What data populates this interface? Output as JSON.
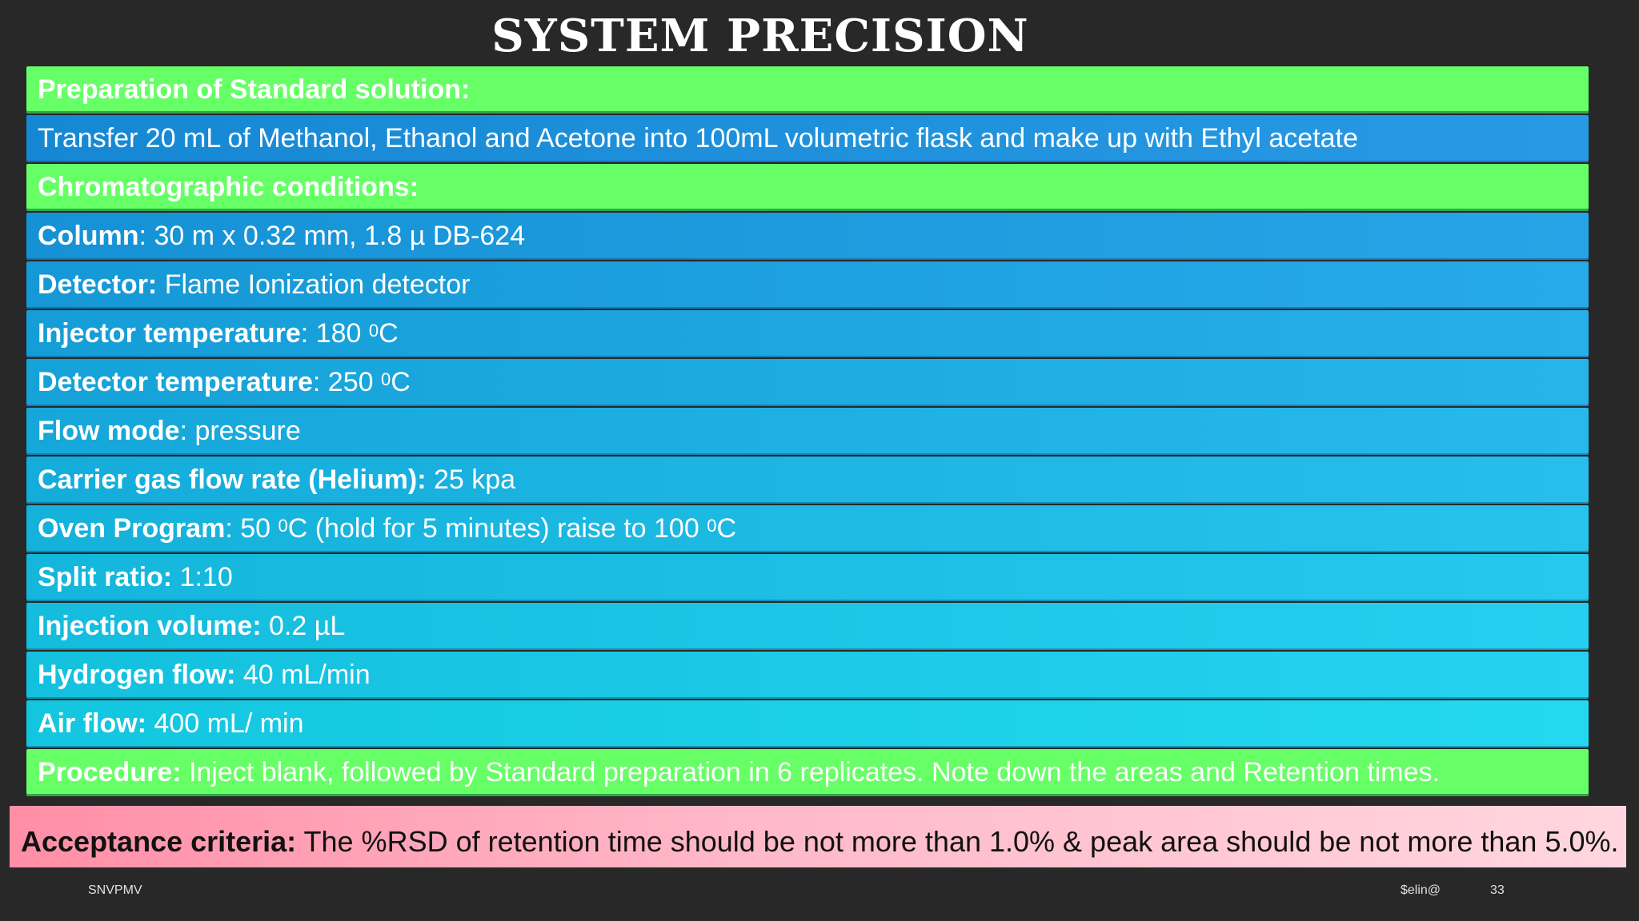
{
  "title": "SYSTEM  PRECISION",
  "rows": [
    {
      "label": "Preparation of Standard solution:",
      "text": "",
      "kind": "green"
    },
    {
      "label": "",
      "text": "Transfer 20 mL of Methanol, Ethanol and Acetone into 100mL volumetric flask and make up with Ethyl acetate",
      "kind": "blue"
    },
    {
      "label": "Chromatographic conditions:",
      "text": "",
      "kind": "green"
    },
    {
      "label": "Column",
      "text": ": 30 m x 0.32 mm, 1.8 µ DB-624",
      "kind": "blue"
    },
    {
      "label": "Detector:",
      "text": " Flame Ionization detector",
      "kind": "blue"
    },
    {
      "label": "Injector temperature",
      "text": ": 180 ",
      "sup": "0",
      "tail": "C",
      "kind": "blue"
    },
    {
      "label": "Detector temperature",
      "text": ": 250 ",
      "sup": "0",
      "tail": "C",
      "kind": "blue"
    },
    {
      "label": "Flow mode",
      "text": ": pressure",
      "kind": "blue"
    },
    {
      "label": "Carrier gas flow rate (Helium):",
      "text": " 25 kpa",
      "kind": "blue"
    },
    {
      "label": "Oven Program",
      "text": ": 50 ",
      "sup": "0",
      "tail": "C (hold for 5 minutes) raise to 100 ",
      "sup2": "0",
      "tail2": "C",
      "kind": "blue"
    },
    {
      "label": "Split ratio:",
      "text": " 1:10",
      "kind": "blue"
    },
    {
      "label": "Injection volume:",
      "text": " 0.2 µL",
      "kind": "blue"
    },
    {
      "label": "Hydrogen flow:",
      "text": " 40 mL/min",
      "kind": "blue"
    },
    {
      "label": "Air flow:",
      "text": " 400 mL/ min",
      "kind": "blue"
    },
    {
      "label": "Procedure:",
      "text": " Inject blank, followed by Standard preparation in 6 replicates. Note down the areas and Retention times.",
      "kind": "green"
    }
  ],
  "acceptance": {
    "label": "Acceptance criteria:",
    "text": " The %RSD of retention time should be not more than 1.0% & peak area should be not more than 5.0%."
  },
  "footer": {
    "left": "SNVPMV",
    "author": "$elin@",
    "page": "33"
  },
  "colors": {
    "green_row": "#66ff66",
    "blue_start": "#1683d2",
    "blue_end": "#13cbe0",
    "background": "#282828"
  }
}
